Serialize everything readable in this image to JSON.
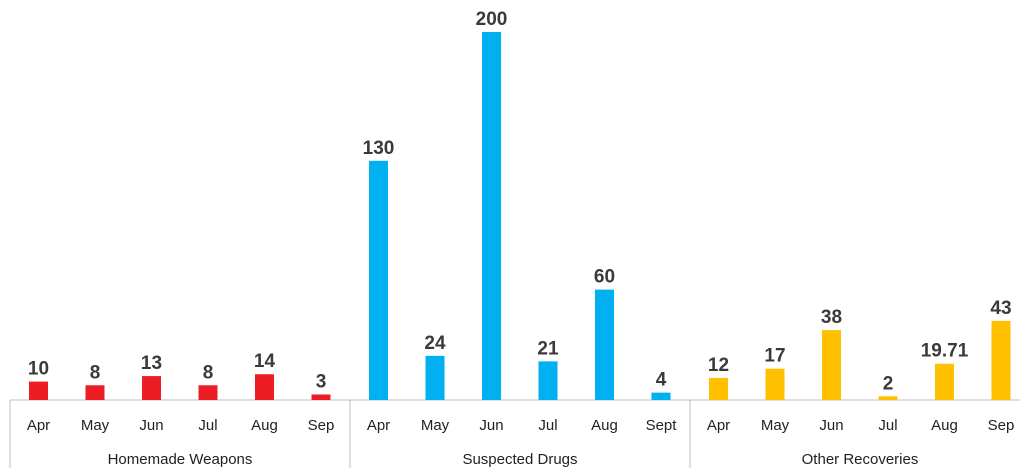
{
  "chart_data": {
    "type": "bar",
    "title": "",
    "xlabel": "",
    "ylabel": "",
    "ylim": [
      0,
      200
    ],
    "grid": false,
    "groups": [
      {
        "name": "Homemade Weapons",
        "color": "#ee1c25",
        "categories": [
          "Apr",
          "May",
          "Jun",
          "Jul",
          "Aug",
          "Sep"
        ],
        "values": [
          10,
          8,
          13,
          8,
          14,
          3
        ],
        "labels": [
          "10",
          "8",
          "13",
          "8",
          "14",
          "3"
        ]
      },
      {
        "name": "Suspected Drugs",
        "color": "#00b0f0",
        "categories": [
          "Apr",
          "May",
          "Jun",
          "Jul",
          "Aug",
          "Sept"
        ],
        "values": [
          130,
          24,
          200,
          21,
          60,
          4
        ],
        "labels": [
          "130",
          "24",
          "200",
          "21",
          "60",
          "4"
        ]
      },
      {
        "name": "Other Recoveries",
        "color": "#ffc000",
        "categories": [
          "Apr",
          "May",
          "Jun",
          "Jul",
          "Aug",
          "Sep"
        ],
        "values": [
          12,
          17,
          38,
          2,
          19.71,
          43
        ],
        "labels": [
          "12",
          "17",
          "38",
          "2",
          "19.71",
          "43"
        ]
      }
    ]
  }
}
